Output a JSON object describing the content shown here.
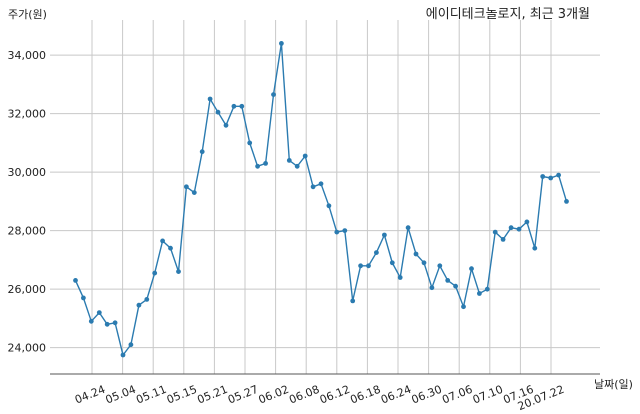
{
  "chart_data": {
    "type": "line",
    "title": "에이디테크놀로지, 최근 3개월",
    "ylabel": "주가(원)",
    "xlabel": "날짜(일)",
    "ylim": [
      23100,
      35200
    ],
    "yticks": [
      24000,
      26000,
      28000,
      30000,
      32000,
      34000
    ],
    "ytick_labels": [
      "24,000",
      "26,000",
      "28,000",
      "30,000",
      "32,000",
      "34,000"
    ],
    "xtick_labels": [
      "04.24",
      "05.04",
      "05.11",
      "05.15",
      "05.21",
      "05.27",
      "06.02",
      "06.08",
      "06.12",
      "06.18",
      "06.24",
      "06.30",
      "07.06",
      "07.10",
      "07.16",
      "20.07.22"
    ],
    "grid": true,
    "series": [
      {
        "color": "#2b7bb0",
        "values": [
          26300,
          25700,
          24900,
          25200,
          24800,
          24850,
          23750,
          24100,
          25450,
          25650,
          26550,
          27650,
          27400,
          26600,
          29500,
          29300,
          30700,
          32500,
          32050,
          31600,
          32250,
          32250,
          31000,
          30200,
          30300,
          32650,
          34400,
          30400,
          30200,
          30550,
          29500,
          29600,
          28850,
          27950,
          28000,
          25600,
          26800,
          26800,
          27250,
          27850,
          26900,
          26400,
          28100,
          27200,
          26900,
          26050,
          26800,
          26300,
          26100,
          25400,
          26700,
          25850,
          26000,
          27950,
          27700,
          28100,
          28050,
          28300,
          27400,
          29850,
          29800,
          29900,
          29000
        ]
      }
    ]
  }
}
